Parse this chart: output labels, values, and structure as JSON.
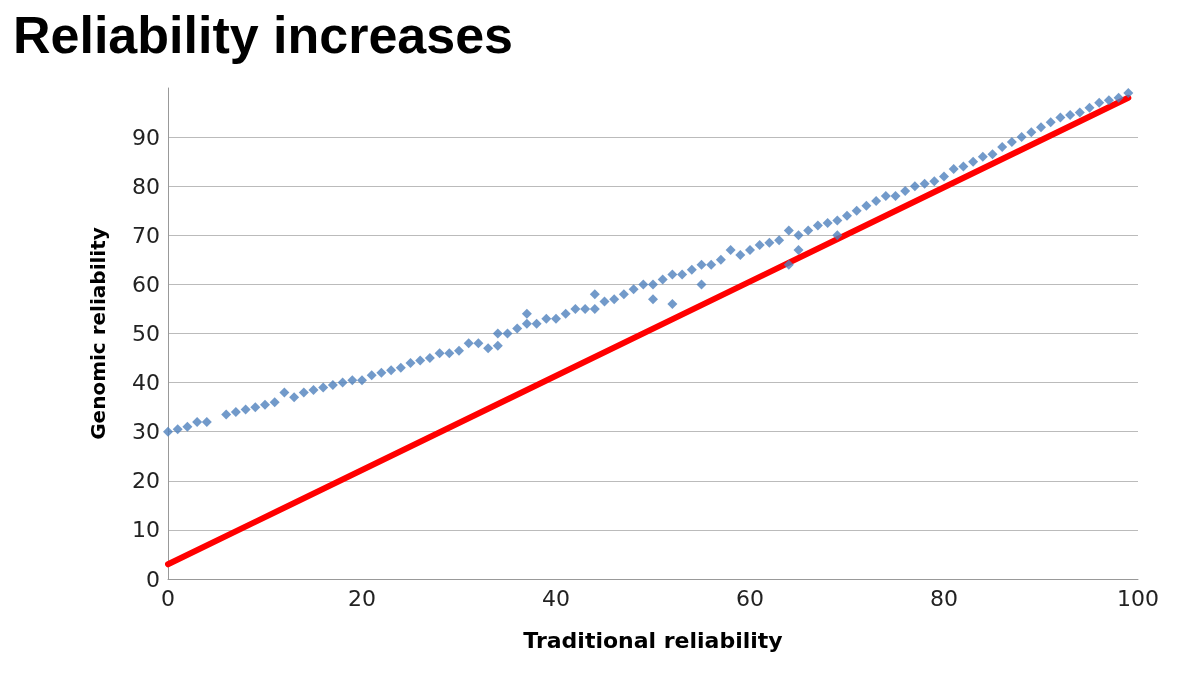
{
  "chart_data": {
    "type": "scatter",
    "title": "Reliability increases",
    "xlabel": "Traditional reliability",
    "ylabel": "Genomic reliability",
    "xlim": [
      0,
      100
    ],
    "xticks": [
      0,
      20,
      40,
      60,
      80,
      100
    ],
    "ylim": [
      0,
      100
    ],
    "yticks": [
      0,
      10,
      20,
      30,
      40,
      50,
      60,
      70,
      80,
      90
    ],
    "grid": "y",
    "marker": "diamond",
    "series": [
      {
        "color": "#4f81bd",
        "x": [
          0,
          1,
          2,
          3,
          4,
          6,
          7,
          8,
          9,
          10,
          11,
          12,
          13,
          14,
          15,
          16,
          17,
          18,
          19,
          20,
          21,
          22,
          23,
          24,
          25,
          26,
          27,
          28,
          29,
          30,
          31,
          32,
          33,
          34,
          34,
          35,
          36,
          37,
          37,
          38,
          39,
          40,
          41,
          42,
          43,
          44,
          44,
          45,
          46,
          47,
          48,
          49,
          50,
          50,
          51,
          52,
          52,
          53,
          54,
          55,
          55,
          56,
          57,
          58,
          59,
          60,
          61,
          62,
          63,
          64,
          64,
          65,
          65,
          66,
          67,
          68,
          69,
          69,
          70,
          71,
          72,
          73,
          74,
          75,
          76,
          77,
          78,
          79,
          80,
          81,
          82,
          83,
          84,
          85,
          86,
          87,
          88,
          89,
          90,
          91,
          92,
          93,
          94,
          95,
          96,
          97,
          98,
          99
        ],
        "values": [
          30,
          30.5,
          31,
          32,
          32,
          33.5,
          34,
          34.5,
          35,
          35.5,
          36,
          38,
          37,
          38,
          38.5,
          39,
          39.5,
          40,
          40.5,
          40.5,
          41.5,
          42,
          42.5,
          43,
          44,
          44.5,
          45,
          46,
          46,
          46.5,
          48,
          48,
          47,
          47.5,
          50,
          50,
          51,
          54,
          52,
          52,
          53,
          53,
          54,
          55,
          55,
          58,
          55,
          56.5,
          57,
          58,
          59,
          60,
          57,
          60,
          61,
          56,
          62,
          62,
          63,
          60,
          64,
          64,
          65,
          67,
          66,
          67,
          68,
          68.5,
          69,
          64,
          71,
          67,
          70,
          71,
          72,
          72.5,
          70,
          73,
          74,
          75,
          76,
          77,
          78,
          78,
          79,
          80,
          80.5,
          81,
          82,
          83.5,
          84,
          85,
          86,
          86.5,
          88,
          89,
          90,
          91,
          92,
          93,
          94,
          94.5,
          95,
          96,
          97,
          97.5,
          98,
          99
        ]
      },
      {
        "type": "line",
        "color": "#ff0000",
        "marker": "none",
        "line_style": "solid",
        "x": [
          0,
          99
        ],
        "values": [
          3,
          98
        ]
      }
    ]
  }
}
